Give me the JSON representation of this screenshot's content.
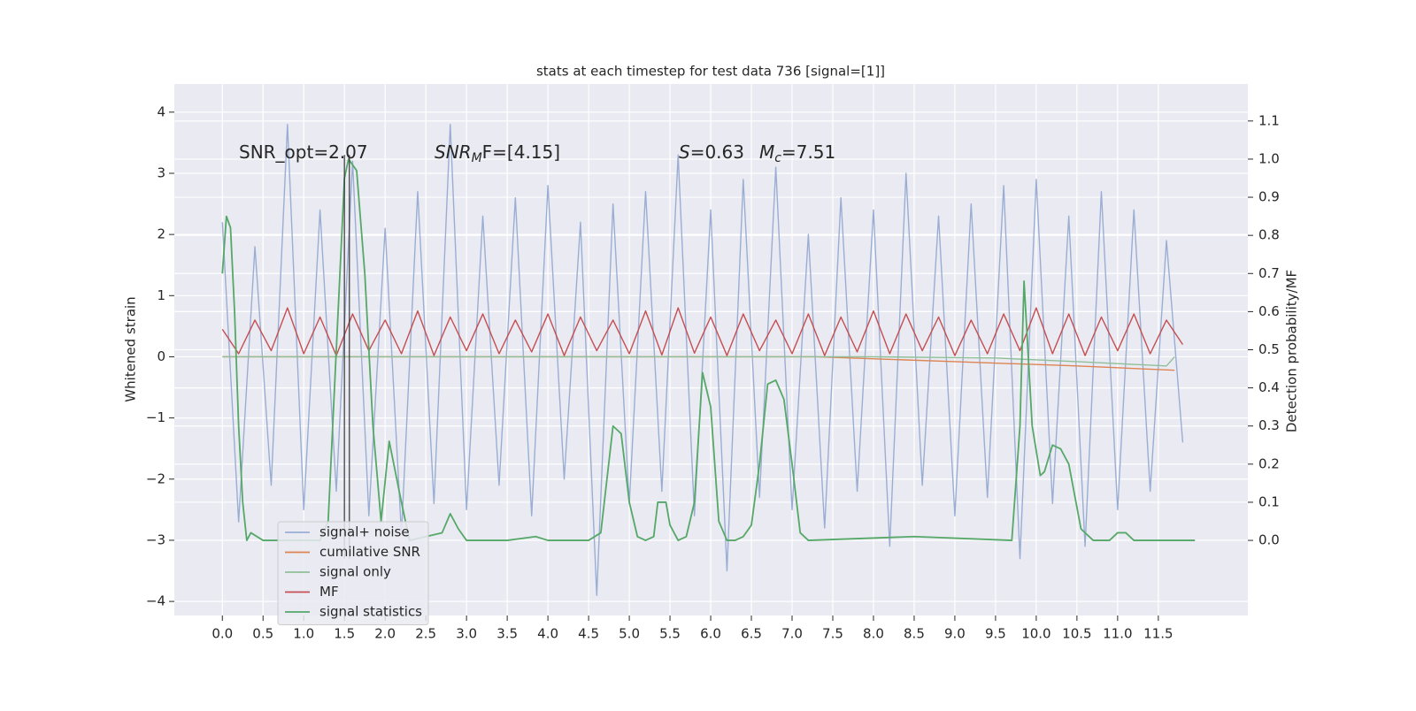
{
  "chart_data": {
    "type": "line",
    "title": "stats at each timestep for test data 736 [signal=[1]]",
    "ylabel": "Whitened strain",
    "y2label": "Detection probability/MF",
    "xlim": [
      -0.59,
      12.6
    ],
    "ylim": [
      -4.23,
      4.46
    ],
    "y2lim": [
      -0.197,
      1.197
    ],
    "xticks": [
      {
        "value": 0,
        "label": "0.0"
      },
      0.5,
      {
        "value": 1,
        "label": "1.0"
      },
      1.5,
      {
        "value": 2,
        "label": "2.0"
      },
      2.5,
      {
        "value": 3,
        "label": "3.0"
      },
      3.5,
      {
        "value": 4,
        "label": "4.0"
      },
      4.5,
      {
        "value": 5,
        "label": "5.0"
      },
      5.5,
      {
        "value": 6,
        "label": "6.0"
      },
      6.5,
      {
        "value": 7,
        "label": "7.0"
      },
      7.5,
      {
        "value": 8,
        "label": "8.0"
      },
      8.5,
      {
        "value": 9,
        "label": "9.0"
      },
      9.5,
      {
        "value": 10,
        "label": "10.0"
      },
      10.5,
      {
        "value": 11,
        "label": "11.0"
      },
      11.5
    ],
    "yticks": [
      {
        "value": -4,
        "label": "−4"
      },
      {
        "value": -3,
        "label": "−3"
      },
      {
        "value": -2,
        "label": "−2"
      },
      {
        "value": -1,
        "label": "−1"
      },
      0,
      1,
      2,
      3,
      4
    ],
    "y2ticks": [
      {
        "value": 0,
        "label": "0.0"
      },
      0.1,
      0.2,
      0.3,
      0.4,
      0.5,
      0.6,
      0.7,
      0.8,
      0.9,
      {
        "value": 1,
        "label": "1.0"
      },
      1.1
    ],
    "grid": true,
    "legend": "lower left",
    "annotations": [
      {
        "base": "SNR_opt=2.07"
      },
      {
        "base": "SNR",
        "sub": "M",
        "rest": "F=[4.15]"
      },
      {
        "base": "S",
        "rest": "=0.63"
      },
      {
        "base": "M",
        "sub": "c",
        "rest": "=7.51"
      }
    ],
    "vlines": [
      1.5,
      1.56
    ],
    "series": [
      {
        "name": "signal+ noise",
        "color": "#9aaed3",
        "x": [
          0,
          0.2,
          0.4,
          0.6,
          0.8,
          1,
          1.2,
          1.4,
          1.6,
          1.8,
          2,
          2.2,
          2.4,
          2.6,
          2.8,
          3,
          3.2,
          3.4,
          3.6,
          3.8,
          4,
          4.2,
          4.4,
          4.6,
          4.8,
          5,
          5.2,
          5.4,
          5.6,
          5.8,
          6,
          6.2,
          6.4,
          6.6,
          6.8,
          7,
          7.2,
          7.4,
          7.6,
          7.8,
          8,
          8.2,
          8.4,
          8.6,
          8.8,
          9,
          9.2,
          9.4,
          9.6,
          9.8,
          10,
          10.2,
          10.4,
          10.6,
          10.8,
          11,
          11.2,
          11.4,
          11.6,
          11.8
        ],
        "values": [
          2.2,
          -2.7,
          1.8,
          -2.1,
          3.8,
          -2.5,
          2.4,
          -2.2,
          3.2,
          -2.6,
          2.1,
          -2.9,
          2.7,
          -2.4,
          3.8,
          -2.5,
          2.3,
          -2.1,
          2.6,
          -2.6,
          2.8,
          -2.0,
          2.2,
          -3.9,
          2.5,
          -2.4,
          2.7,
          -2.2,
          3.3,
          -2.6,
          2.4,
          -3.5,
          2.9,
          -2.3,
          3.1,
          -2.5,
          2.0,
          -2.8,
          2.6,
          -2.2,
          2.4,
          -3.1,
          3.0,
          -2.1,
          2.3,
          -2.6,
          2.5,
          -2.3,
          2.8,
          -3.3,
          2.9,
          -2.4,
          2.3,
          -3.1,
          2.7,
          -2.5,
          2.4,
          -2.2,
          1.9,
          -1.4
        ]
      },
      {
        "name": "cumilative SNR",
        "color": "#dd8452",
        "x": [
          0,
          7.3,
          9,
          10.5,
          11.7
        ],
        "values": [
          0,
          0,
          -0.08,
          -0.15,
          -0.22
        ]
      },
      {
        "name": "signal only",
        "color": "#8fbf97",
        "x": [
          0,
          8,
          9.5,
          10.5,
          11.6,
          11.7
        ],
        "values": [
          0,
          0,
          -0.02,
          -0.08,
          -0.15,
          0
        ]
      },
      {
        "name": "MF",
        "color": "#c44e52",
        "x": [
          0,
          0.2,
          0.4,
          0.6,
          0.8,
          1,
          1.2,
          1.4,
          1.6,
          1.8,
          2,
          2.2,
          2.4,
          2.6,
          2.8,
          3,
          3.2,
          3.4,
          3.6,
          3.8,
          4,
          4.2,
          4.4,
          4.6,
          4.8,
          5,
          5.2,
          5.4,
          5.6,
          5.8,
          6,
          6.2,
          6.4,
          6.6,
          6.8,
          7,
          7.2,
          7.4,
          7.6,
          7.8,
          8,
          8.2,
          8.4,
          8.6,
          8.8,
          9,
          9.2,
          9.4,
          9.6,
          9.8,
          10,
          10.2,
          10.4,
          10.6,
          10.8,
          11,
          11.2,
          11.4,
          11.6,
          11.8
        ],
        "values": [
          0.45,
          0.05,
          0.6,
          0.1,
          0.8,
          0.05,
          0.65,
          0.02,
          0.7,
          0.1,
          0.6,
          0.05,
          0.75,
          0.02,
          0.65,
          0.1,
          0.7,
          0.05,
          0.6,
          0.08,
          0.7,
          0.02,
          0.65,
          0.1,
          0.6,
          0.05,
          0.75,
          0.03,
          0.8,
          0.06,
          0.65,
          0.02,
          0.7,
          0.1,
          0.6,
          0.05,
          0.7,
          0.02,
          0.65,
          0.08,
          0.75,
          0.05,
          0.7,
          0.1,
          0.65,
          0.02,
          0.6,
          0.05,
          0.7,
          0.1,
          0.8,
          0.05,
          0.7,
          0.02,
          0.65,
          0.1,
          0.7,
          0.05,
          0.6,
          0.2
        ]
      },
      {
        "name": "signal statistics",
        "color": "#55a868",
        "axis": "y2",
        "x": [
          0,
          0.05,
          0.1,
          0.15,
          0.2,
          0.25,
          0.3,
          0.35,
          0.5,
          1.2,
          1.3,
          1.4,
          1.5,
          1.55,
          1.65,
          1.75,
          1.85,
          1.95,
          2.05,
          2.2,
          2.3,
          2.7,
          2.8,
          2.9,
          3.0,
          3.5,
          3.85,
          4.0,
          4.5,
          4.65,
          4.8,
          4.9,
          5.0,
          5.1,
          5.2,
          5.3,
          5.35,
          5.45,
          5.5,
          5.6,
          5.7,
          5.8,
          5.9,
          6.0,
          6.1,
          6.2,
          6.3,
          6.4,
          6.5,
          6.6,
          6.7,
          6.8,
          6.9,
          7.0,
          7.1,
          7.2,
          8.5,
          9.7,
          9.8,
          9.85,
          9.95,
          10.05,
          10.1,
          10.2,
          10.3,
          10.4,
          10.55,
          10.7,
          10.9,
          11.0,
          11.1,
          11.2,
          11.95
        ],
        "values": [
          0.7,
          0.85,
          0.82,
          0.6,
          0.3,
          0.1,
          0,
          0.02,
          0,
          0,
          0.05,
          0.5,
          0.95,
          1.0,
          0.97,
          0.7,
          0.3,
          0.05,
          0.26,
          0.1,
          0,
          0.02,
          0.07,
          0.03,
          0,
          0,
          0.01,
          0,
          0,
          0.02,
          0.3,
          0.28,
          0.1,
          0.01,
          0,
          0.01,
          0.1,
          0.1,
          0.04,
          0,
          0.01,
          0.1,
          0.44,
          0.35,
          0.05,
          0,
          0,
          0.01,
          0.04,
          0.2,
          0.41,
          0.42,
          0.37,
          0.2,
          0.02,
          0,
          0.01,
          0,
          0.3,
          0.68,
          0.3,
          0.17,
          0.18,
          0.25,
          0.24,
          0.2,
          0.03,
          0,
          0,
          0.02,
          0.02,
          0,
          0
        ]
      }
    ]
  }
}
